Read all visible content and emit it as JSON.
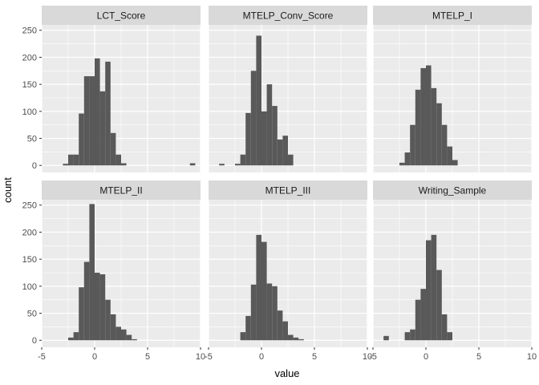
{
  "chart_data": {
    "type": "bar",
    "subtype": "faceted-histogram",
    "xlabel": "value",
    "ylabel": "count",
    "xlim": [
      -5,
      10
    ],
    "ylim": [
      0,
      260
    ],
    "x_ticks": [
      -5,
      0,
      5,
      10
    ],
    "y_ticks": [
      0,
      50,
      100,
      150,
      200,
      250
    ],
    "grid": true,
    "bin_width": 0.5,
    "facet_cols": 3,
    "colors": {
      "bar": "#595959",
      "panel": "#ebebeb",
      "strip": "#d9d9d9",
      "grid": "#ffffff"
    },
    "facets": [
      {
        "name": "LCT_Score",
        "bins": [
          [
            -3.0,
            3
          ],
          [
            -2.5,
            20
          ],
          [
            -2.0,
            20
          ],
          [
            -1.5,
            96
          ],
          [
            -1.0,
            165
          ],
          [
            -0.5,
            165
          ],
          [
            0.0,
            198
          ],
          [
            0.5,
            137
          ],
          [
            1.0,
            192
          ],
          [
            1.5,
            60
          ],
          [
            2.0,
            20
          ],
          [
            2.5,
            4
          ],
          [
            9.0,
            4
          ]
        ]
      },
      {
        "name": "MTELP_Conv_Score",
        "bins": [
          [
            -4.0,
            3
          ],
          [
            -2.5,
            3
          ],
          [
            -2.0,
            20
          ],
          [
            -1.5,
            97
          ],
          [
            -1.0,
            175
          ],
          [
            -0.5,
            240
          ],
          [
            0.0,
            100
          ],
          [
            0.5,
            150
          ],
          [
            1.0,
            110
          ],
          [
            1.5,
            48
          ],
          [
            2.0,
            55
          ],
          [
            2.5,
            20
          ]
        ]
      },
      {
        "name": "MTELP_I",
        "bins": [
          [
            -2.5,
            5
          ],
          [
            -2.0,
            24
          ],
          [
            -1.5,
            75
          ],
          [
            -1.0,
            140
          ],
          [
            -0.5,
            180
          ],
          [
            0.0,
            185
          ],
          [
            0.5,
            143
          ],
          [
            1.0,
            115
          ],
          [
            1.5,
            75
          ],
          [
            2.0,
            35
          ],
          [
            2.5,
            10
          ]
        ]
      },
      {
        "name": "MTELP_II",
        "bins": [
          [
            -2.5,
            5
          ],
          [
            -2.0,
            15
          ],
          [
            -1.5,
            98
          ],
          [
            -1.0,
            145
          ],
          [
            -0.5,
            252
          ],
          [
            0.0,
            125
          ],
          [
            0.5,
            122
          ],
          [
            1.0,
            75
          ],
          [
            1.5,
            48
          ],
          [
            2.0,
            25
          ],
          [
            2.5,
            20
          ],
          [
            3.0,
            10
          ],
          [
            3.5,
            2
          ]
        ]
      },
      {
        "name": "MTELP_III",
        "bins": [
          [
            -2.0,
            15
          ],
          [
            -1.5,
            45
          ],
          [
            -1.0,
            103
          ],
          [
            -0.5,
            195
          ],
          [
            0.0,
            182
          ],
          [
            0.5,
            105
          ],
          [
            1.0,
            100
          ],
          [
            1.5,
            55
          ],
          [
            2.0,
            35
          ],
          [
            2.5,
            10
          ],
          [
            3.0,
            5
          ],
          [
            3.5,
            2
          ]
        ]
      },
      {
        "name": "Writing_Sample",
        "bins": [
          [
            -4.0,
            8
          ],
          [
            -2.0,
            15
          ],
          [
            -1.5,
            20
          ],
          [
            -1.0,
            75
          ],
          [
            -0.5,
            95
          ],
          [
            0.0,
            185
          ],
          [
            0.5,
            195
          ],
          [
            1.0,
            130
          ],
          [
            1.5,
            48
          ],
          [
            2.0,
            15
          ]
        ]
      }
    ]
  }
}
